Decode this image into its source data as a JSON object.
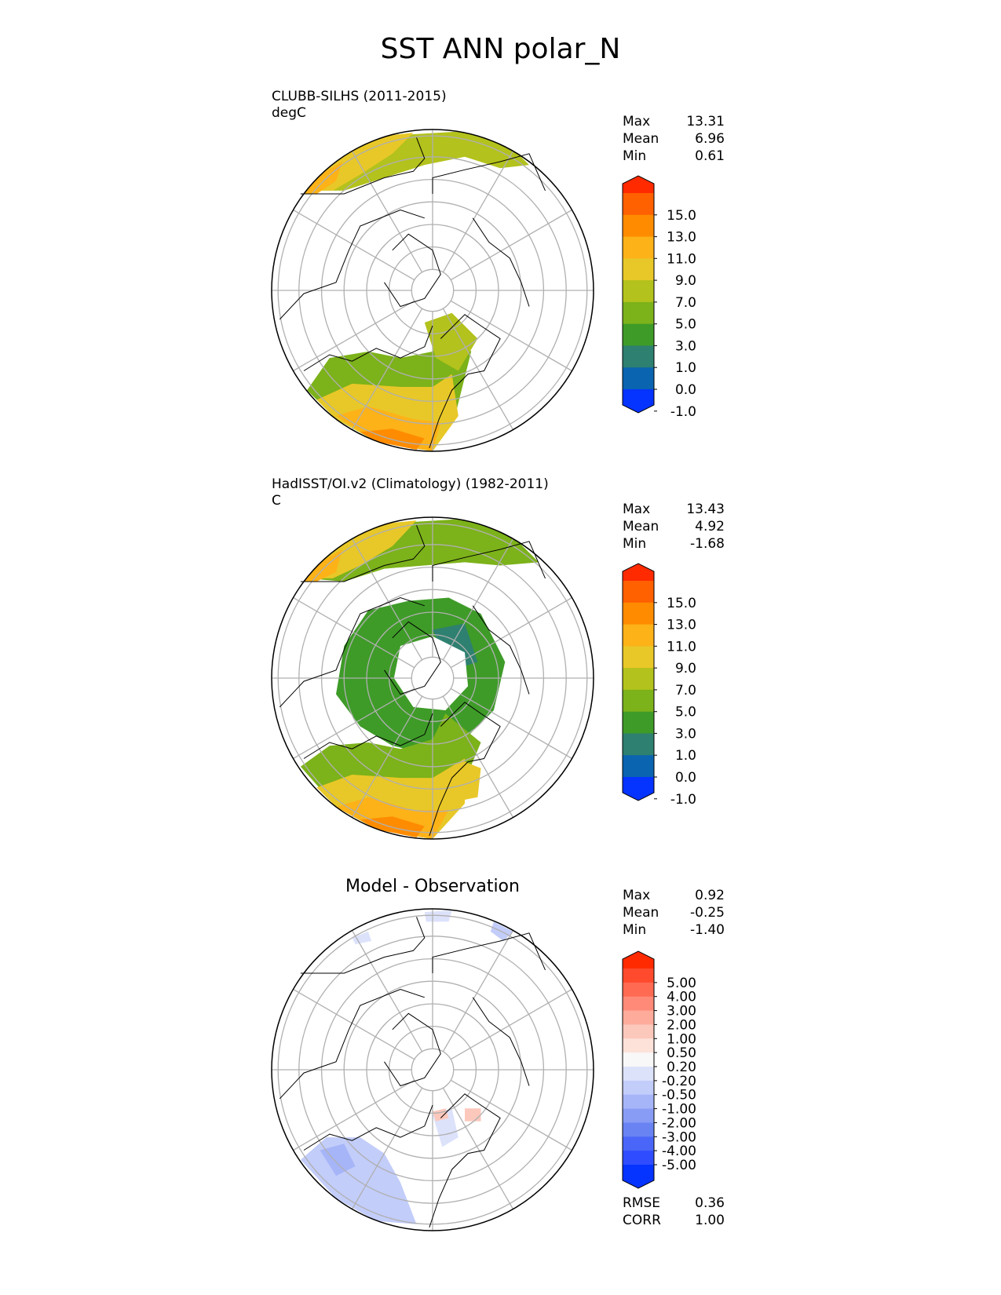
{
  "title": "SST ANN polar_N",
  "panels": [
    {
      "title": "CLUBB-SILHS (2011-2015)",
      "units": "degC",
      "stats": [
        {
          "label": "Max",
          "value": "13.31"
        },
        {
          "label": "Mean",
          "value": "6.96"
        },
        {
          "label": "Min",
          "value": "0.61"
        }
      ],
      "colorbar_ticks": [
        "15.0",
        "13.0",
        "11.0",
        "9.0",
        "7.0",
        "5.0",
        "3.0",
        "1.0",
        "0.0",
        "-1.0"
      ],
      "colorbar_colors": [
        "#ff2a00",
        "#ff6000",
        "#ff8c00",
        "#fdb218",
        "#e8c828",
        "#b3c21c",
        "#7cb21a",
        "#3e9b28",
        "#2e8070",
        "#0a64b0",
        "#0533ff"
      ]
    },
    {
      "title": "HadISST/OI.v2 (Climatology) (1982-2011)",
      "units": "C",
      "stats": [
        {
          "label": "Max",
          "value": "13.43"
        },
        {
          "label": "Mean",
          "value": "4.92"
        },
        {
          "label": "Min",
          "value": "-1.68"
        }
      ],
      "colorbar_ticks": [
        "15.0",
        "13.0",
        "11.0",
        "9.0",
        "7.0",
        "5.0",
        "3.0",
        "1.0",
        "0.0",
        "-1.0"
      ],
      "colorbar_colors": [
        "#ff2a00",
        "#ff6000",
        "#ff8c00",
        "#fdb218",
        "#e8c828",
        "#b3c21c",
        "#7cb21a",
        "#3e9b28",
        "#2e8070",
        "#0a64b0",
        "#0533ff"
      ]
    },
    {
      "title": "Model - Observation",
      "stats": [
        {
          "label": "Max",
          "value": "0.92"
        },
        {
          "label": "Mean",
          "value": "-0.25"
        },
        {
          "label": "Min",
          "value": "-1.40"
        }
      ],
      "colorbar_ticks": [
        "5.00",
        "4.00",
        "3.00",
        "2.00",
        "1.00",
        "0.50",
        "0.20",
        "-0.20",
        "-0.50",
        "-1.00",
        "-2.00",
        "-3.00",
        "-4.00",
        "-5.00"
      ],
      "colorbar_colors": [
        "#ff2a00",
        "#ff4a2e",
        "#ff6a52",
        "#ff8a78",
        "#ffab9c",
        "#fcc8bc",
        "#fde2da",
        "#f8f8f8",
        "#dde2fb",
        "#c3cdfa",
        "#a6b5f8",
        "#889cf5",
        "#6a83f3",
        "#4a66f8",
        "#2f4dff",
        "#0533ff"
      ],
      "rmse": {
        "label": "RMSE",
        "value": "0.36"
      },
      "corr": {
        "label": "CORR",
        "value": "1.00"
      }
    }
  ],
  "chart_data": [
    {
      "type": "heatmap",
      "title": "CLUBB-SILHS (2011-2015)",
      "projection": "north polar stereographic",
      "variable": "SST",
      "units": "degC",
      "levels": [
        -1.0,
        0.0,
        1.0,
        3.0,
        5.0,
        7.0,
        9.0,
        11.0,
        13.0,
        15.0
      ],
      "max": 13.31,
      "mean": 6.96,
      "min": 0.61
    },
    {
      "type": "heatmap",
      "title": "HadISST/OI.v2 (Climatology) (1982-2011)",
      "projection": "north polar stereographic",
      "variable": "SST",
      "units": "C",
      "levels": [
        -1.0,
        0.0,
        1.0,
        3.0,
        5.0,
        7.0,
        9.0,
        11.0,
        13.0,
        15.0
      ],
      "max": 13.43,
      "mean": 4.92,
      "min": -1.68
    },
    {
      "type": "heatmap",
      "title": "Model - Observation",
      "projection": "north polar stereographic",
      "levels": [
        -5.0,
        -4.0,
        -3.0,
        -2.0,
        -1.0,
        -0.5,
        -0.2,
        0.2,
        0.5,
        1.0,
        2.0,
        3.0,
        4.0,
        5.0
      ],
      "max": 0.92,
      "mean": -0.25,
      "min": -1.4,
      "rmse": 0.36,
      "corr": 1.0
    }
  ]
}
